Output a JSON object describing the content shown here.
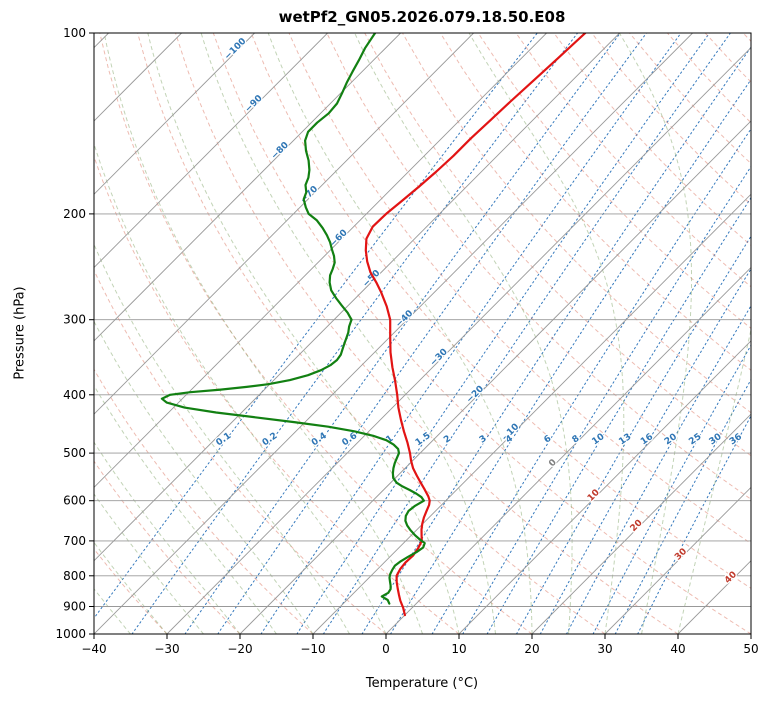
{
  "chart_data": {
    "type": "line",
    "variant": "skew-t-log-p",
    "title": "wetPf2_GN05.2026.079.18.50.E08",
    "xlabel": "Temperature (°C)",
    "ylabel": "Pressure (hPa)",
    "xlim": [
      -40,
      50
    ],
    "p_top": 100,
    "p_bottom": 1000,
    "x_ticks": [
      -40,
      -30,
      -20,
      -10,
      0,
      10,
      20,
      30,
      40,
      50
    ],
    "y_ticks": [
      100,
      200,
      300,
      400,
      500,
      600,
      700,
      800,
      900,
      1000
    ],
    "skew_deg_per_decade": 82,
    "grid": true,
    "isotherms": {
      "start": -120,
      "end": 50,
      "step": 10,
      "color": "#999999",
      "label_colors": {
        "negative": "#2f76b5",
        "zero": "#7f7f7f",
        "positive": "#c0392b"
      },
      "labels": [
        {
          "t": -100,
          "p": 107
        },
        {
          "t": -90,
          "p": 132
        },
        {
          "t": -80,
          "p": 158
        },
        {
          "t": -70,
          "p": 187
        },
        {
          "t": -60,
          "p": 221
        },
        {
          "t": -50,
          "p": 258
        },
        {
          "t": -40,
          "p": 301
        },
        {
          "t": -30,
          "p": 349
        },
        {
          "t": -20,
          "p": 402
        },
        {
          "t": -10,
          "p": 465
        },
        {
          "t": 0,
          "p": 523
        },
        {
          "t": 10,
          "p": 592
        },
        {
          "t": 20,
          "p": 665
        },
        {
          "t": 30,
          "p": 742
        },
        {
          "t": 40,
          "p": 811
        }
      ]
    },
    "dry_adiabats": {
      "start": -40,
      "end": 190,
      "step": 10,
      "color": "#dd7a66",
      "opacity": 0.5
    },
    "moist_adiabats": {
      "start": -40,
      "end": 40,
      "step": 5,
      "color": "#86a96f",
      "opacity": 0.5
    },
    "mixing_ratio": {
      "values": [
        0.1,
        0.2,
        0.4,
        0.6,
        1,
        1.5,
        2,
        3,
        4,
        6,
        8,
        10,
        13,
        16,
        20,
        25,
        30,
        36
      ],
      "labels": [
        "0.1",
        "0.2",
        "0.4",
        "0.6",
        "1",
        "1.5",
        "2",
        "3",
        "4",
        "6",
        "8",
        "10",
        "13",
        "16",
        "20",
        "25",
        "30",
        "36"
      ],
      "label_pressure": 478,
      "color": "#3579bd",
      "label_color": "#2f76b5"
    },
    "series": [
      {
        "name": "temperature",
        "color": "#e21414",
        "width": 2.2,
        "points": [
          [
            930,
            0.0
          ],
          [
            905,
            -1.2
          ],
          [
            880,
            -2.6
          ],
          [
            860,
            -3.6
          ],
          [
            840,
            -4.6
          ],
          [
            820,
            -5.6
          ],
          [
            800,
            -6.5
          ],
          [
            780,
            -6.9
          ],
          [
            760,
            -7.1
          ],
          [
            740,
            -7.0
          ],
          [
            720,
            -7.3
          ],
          [
            700,
            -7.8
          ],
          [
            685,
            -8.6
          ],
          [
            670,
            -9.4
          ],
          [
            655,
            -10.1
          ],
          [
            640,
            -10.7
          ],
          [
            625,
            -11.2
          ],
          [
            610,
            -11.7
          ],
          [
            600,
            -12.2
          ],
          [
            590,
            -13.0
          ],
          [
            575,
            -14.4
          ],
          [
            560,
            -15.9
          ],
          [
            545,
            -17.4
          ],
          [
            530,
            -18.9
          ],
          [
            515,
            -20.2
          ],
          [
            500,
            -21.4
          ],
          [
            480,
            -23.2
          ],
          [
            460,
            -25.2
          ],
          [
            440,
            -27.2
          ],
          [
            420,
            -29.2
          ],
          [
            400,
            -31.1
          ],
          [
            380,
            -33.2
          ],
          [
            360,
            -35.5
          ],
          [
            340,
            -37.8
          ],
          [
            320,
            -40.0
          ],
          [
            300,
            -42.3
          ],
          [
            285,
            -44.6
          ],
          [
            270,
            -47.3
          ],
          [
            260,
            -49.3
          ],
          [
            250,
            -51.5
          ],
          [
            240,
            -53.4
          ],
          [
            230,
            -55.1
          ],
          [
            220,
            -56.6
          ],
          [
            210,
            -57.4
          ],
          [
            200,
            -57.3
          ],
          [
            190,
            -56.9
          ],
          [
            180,
            -56.5
          ],
          [
            170,
            -56.2
          ],
          [
            160,
            -56.0
          ],
          [
            150,
            -56.0
          ],
          [
            140,
            -55.8
          ],
          [
            130,
            -55.6
          ],
          [
            120,
            -55.3
          ],
          [
            110,
            -55.0
          ],
          [
            100,
            -54.7
          ]
        ]
      },
      {
        "name": "dewpoint",
        "color": "#128012",
        "width": 2.2,
        "points": [
          [
            890,
            -3.7
          ],
          [
            878,
            -4.4
          ],
          [
            866,
            -5.7
          ],
          [
            854,
            -5.3
          ],
          [
            842,
            -5.5
          ],
          [
            830,
            -6.0
          ],
          [
            818,
            -6.6
          ],
          [
            806,
            -7.2
          ],
          [
            795,
            -7.6
          ],
          [
            782,
            -7.9
          ],
          [
            770,
            -8.1
          ],
          [
            757,
            -7.9
          ],
          [
            744,
            -7.5
          ],
          [
            731,
            -7.0
          ],
          [
            718,
            -6.7
          ],
          [
            706,
            -7.1
          ],
          [
            695,
            -8.4
          ],
          [
            684,
            -9.6
          ],
          [
            672,
            -10.8
          ],
          [
            660,
            -11.9
          ],
          [
            648,
            -12.8
          ],
          [
            636,
            -13.4
          ],
          [
            624,
            -13.7
          ],
          [
            612,
            -13.5
          ],
          [
            600,
            -13.0
          ],
          [
            592,
            -13.8
          ],
          [
            584,
            -15.0
          ],
          [
            576,
            -16.4
          ],
          [
            568,
            -17.9
          ],
          [
            560,
            -19.2
          ],
          [
            550,
            -20.3
          ],
          [
            540,
            -21.0
          ],
          [
            530,
            -21.6
          ],
          [
            520,
            -22.1
          ],
          [
            510,
            -22.5
          ],
          [
            500,
            -22.9
          ],
          [
            492,
            -23.6
          ],
          [
            484,
            -24.8
          ],
          [
            476,
            -26.4
          ],
          [
            468,
            -28.8
          ],
          [
            460,
            -32.0
          ],
          [
            452,
            -36.2
          ],
          [
            444,
            -41.5
          ],
          [
            436,
            -47.5
          ],
          [
            428,
            -53.5
          ],
          [
            420,
            -58.5
          ],
          [
            412,
            -61.6
          ],
          [
            406,
            -62.8
          ],
          [
            400,
            -62.2
          ],
          [
            396,
            -59.8
          ],
          [
            392,
            -56.0
          ],
          [
            388,
            -52.8
          ],
          [
            384,
            -50.2
          ],
          [
            378,
            -47.8
          ],
          [
            371,
            -46.0
          ],
          [
            364,
            -44.9
          ],
          [
            357,
            -44.3
          ],
          [
            350,
            -44.1
          ],
          [
            343,
            -44.3
          ],
          [
            336,
            -44.8
          ],
          [
            329,
            -45.3
          ],
          [
            322,
            -45.8
          ],
          [
            315,
            -46.3
          ],
          [
            308,
            -47.0
          ],
          [
            300,
            -47.6
          ],
          [
            292,
            -49.1
          ],
          [
            284,
            -50.9
          ],
          [
            276,
            -52.7
          ],
          [
            268,
            -54.4
          ],
          [
            260,
            -55.7
          ],
          [
            253,
            -56.6
          ],
          [
            247,
            -57.1
          ],
          [
            241,
            -57.7
          ],
          [
            235,
            -58.7
          ],
          [
            229,
            -59.9
          ],
          [
            223,
            -61.1
          ],
          [
            217,
            -62.5
          ],
          [
            211,
            -64.1
          ],
          [
            205,
            -65.9
          ],
          [
            200,
            -67.9
          ],
          [
            195,
            -69.2
          ],
          [
            189,
            -70.6
          ],
          [
            184,
            -71.2
          ],
          [
            179,
            -72.3
          ],
          [
            174,
            -72.9
          ],
          [
            169,
            -73.8
          ],
          [
            163,
            -75.2
          ],
          [
            157,
            -76.9
          ],
          [
            151,
            -78.4
          ],
          [
            146,
            -79.2
          ],
          [
            141,
            -79.2
          ],
          [
            136,
            -78.9
          ],
          [
            131,
            -79.1
          ],
          [
            126,
            -79.8
          ],
          [
            121,
            -80.6
          ],
          [
            116,
            -81.3
          ],
          [
            111,
            -82.0
          ],
          [
            106,
            -82.8
          ],
          [
            100,
            -83.5
          ]
        ]
      }
    ]
  }
}
